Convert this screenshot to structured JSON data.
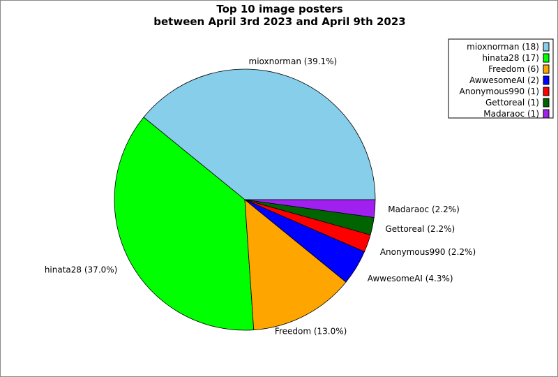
{
  "chart_data": {
    "type": "pie",
    "title": "Top 10 image posters\nbetween April 3rd 2023 and April 9th 2023",
    "title_lines": [
      "Top 10 image posters",
      "between April 3rd 2023 and April 9th 2023"
    ],
    "categories": [
      "mioxnorman",
      "hinata28",
      "Freedom",
      "AwwesomeAI",
      "Anonymous990",
      "Gettoreal",
      "Madaraoc"
    ],
    "values": [
      18,
      17,
      6,
      2,
      1,
      1,
      1
    ],
    "percent_labels": [
      "mioxnorman (39.1%)",
      "hinata28 (37.0%)",
      "Freedom (13.0%)",
      "AwwesomeAI (4.3%)",
      "Anonymous990 (2.2%)",
      "Gettoreal (2.2%)",
      "Madaraoc (2.2%)"
    ],
    "legend_labels": [
      "mioxnorman (18)",
      "hinata28 (17)",
      "Freedom (6)",
      "AwwesomeAI (2)",
      "Anonymous990 (1)",
      "Gettoreal (1)",
      "Madaraoc (1)"
    ],
    "colors": [
      "#87ceeb",
      "#00ff00",
      "#ffa500",
      "#0000ff",
      "#ff0000",
      "#006400",
      "#a020f0"
    ],
    "start_angle_deg": 0,
    "direction": "counterclockwise",
    "legend_position": "top-right"
  }
}
